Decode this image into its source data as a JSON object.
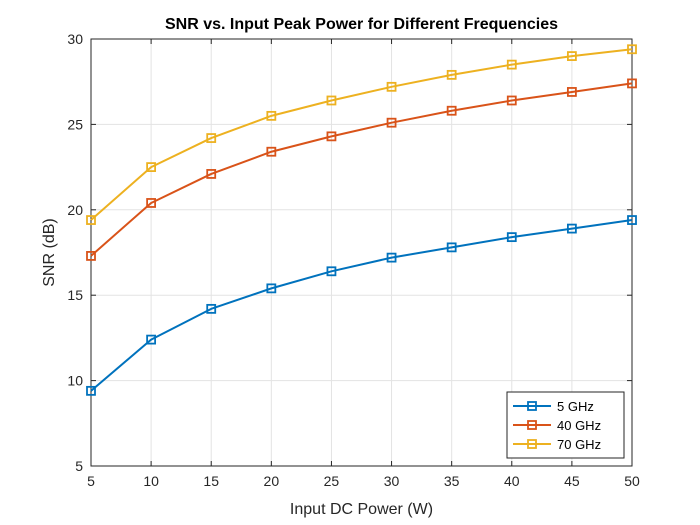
{
  "chart_data": {
    "type": "line",
    "title": "SNR vs. Input Peak Power for Different Frequencies",
    "xlabel": "Input DC Power (W)",
    "ylabel": "SNR (dB)",
    "xlim": [
      5,
      50
    ],
    "ylim": [
      5,
      30
    ],
    "xticks": [
      5,
      10,
      15,
      20,
      25,
      30,
      35,
      40,
      45,
      50
    ],
    "yticks": [
      5,
      10,
      15,
      20,
      25,
      30
    ],
    "grid": true,
    "legend_position": "bottom-right",
    "x": [
      5,
      10,
      15,
      20,
      25,
      30,
      35,
      40,
      45,
      50
    ],
    "series": [
      {
        "name": "5 GHz",
        "color": "#0072BD",
        "marker": "square",
        "values": [
          9.4,
          12.4,
          14.2,
          15.4,
          16.4,
          17.2,
          17.8,
          18.4,
          18.9,
          19.4
        ]
      },
      {
        "name": "40 GHz",
        "color": "#D95319",
        "marker": "square",
        "values": [
          17.3,
          20.4,
          22.1,
          23.4,
          24.3,
          25.1,
          25.8,
          26.4,
          26.9,
          27.4
        ]
      },
      {
        "name": "70 GHz",
        "color": "#EDB120",
        "marker": "square",
        "values": [
          19.4,
          22.5,
          24.2,
          25.5,
          26.4,
          27.2,
          27.9,
          28.5,
          29.0,
          29.4
        ]
      }
    ]
  }
}
